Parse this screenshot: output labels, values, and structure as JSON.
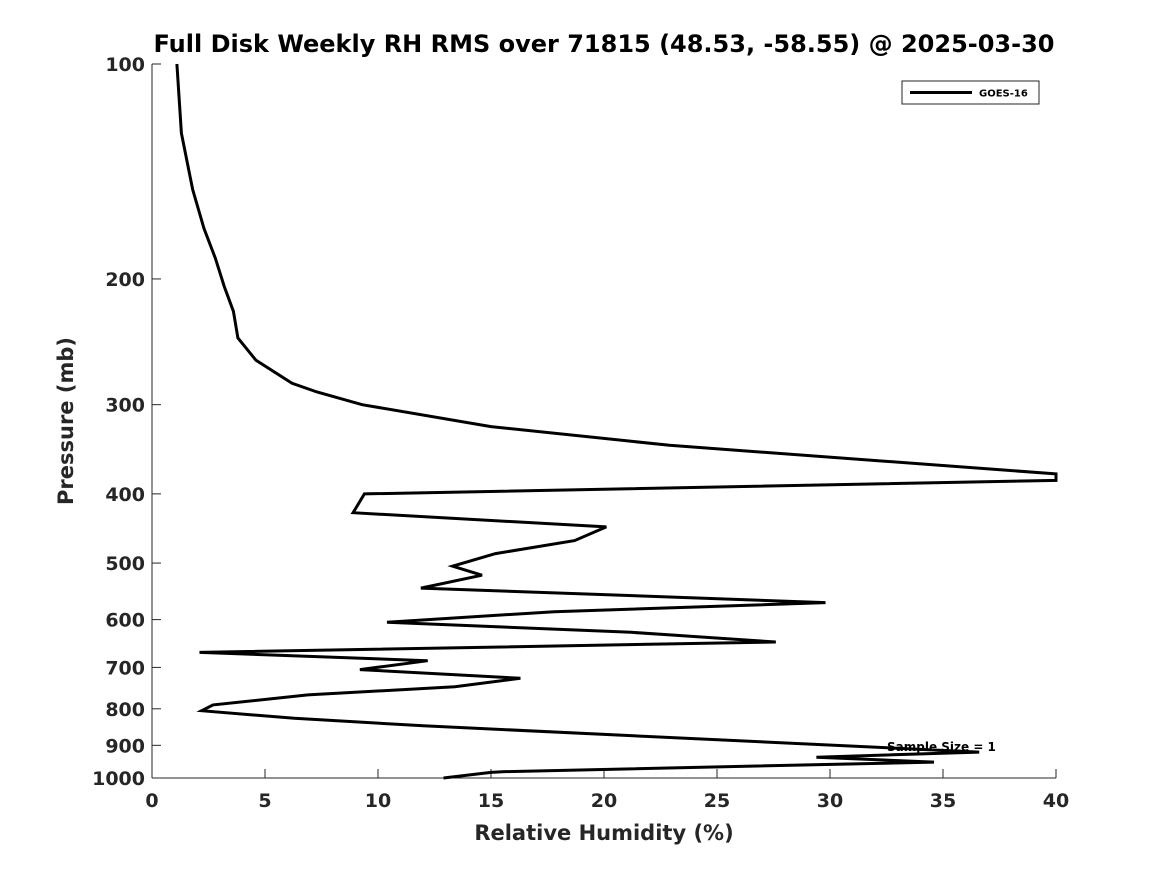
{
  "chart_data": {
    "type": "line",
    "title": "Full Disk Weekly RH RMS over 71815 (48.53, -58.55) @ 2025-03-30",
    "xlabel": "Relative Humidity (%)",
    "ylabel": "Pressure (mb)",
    "xlim": [
      0,
      40
    ],
    "ylim": [
      1000,
      100
    ],
    "y_scale": "log",
    "x_ticks": [
      0,
      5,
      10,
      15,
      20,
      25,
      30,
      35,
      40
    ],
    "y_ticks": [
      100,
      200,
      300,
      400,
      500,
      600,
      700,
      800,
      900,
      1000
    ],
    "grid": false,
    "legend": {
      "position": "top-right",
      "entries": [
        "GOES-16"
      ]
    },
    "annotation": "Sample Size = 1",
    "colors": {
      "line": "#000000",
      "axis": "#262626",
      "background": "#ffffff"
    },
    "series": [
      {
        "name": "GOES-16",
        "points": [
          [
            1.1,
            100
          ],
          [
            1.3,
            125
          ],
          [
            1.8,
            150
          ],
          [
            2.3,
            170
          ],
          [
            2.8,
            187
          ],
          [
            3.2,
            205
          ],
          [
            3.6,
            222
          ],
          [
            3.8,
            242
          ],
          [
            4.6,
            260
          ],
          [
            6.2,
            280
          ],
          [
            7.3,
            288
          ],
          [
            9.3,
            300
          ],
          [
            15.0,
            322
          ],
          [
            22.9,
            342
          ],
          [
            40.0,
            375
          ],
          [
            40.0,
            383
          ],
          [
            9.4,
            400
          ],
          [
            8.9,
            425
          ],
          [
            20.1,
            445
          ],
          [
            18.7,
            465
          ],
          [
            15.2,
            485
          ],
          [
            13.3,
            505
          ],
          [
            14.6,
            520
          ],
          [
            11.9,
            542
          ],
          [
            29.8,
            568
          ],
          [
            17.8,
            585
          ],
          [
            10.4,
            605
          ],
          [
            21.2,
            625
          ],
          [
            27.6,
            645
          ],
          [
            2.1,
            667
          ],
          [
            12.2,
            685
          ],
          [
            9.2,
            705
          ],
          [
            16.3,
            725
          ],
          [
            13.4,
            745
          ],
          [
            6.9,
            765
          ],
          [
            2.7,
            790
          ],
          [
            2.2,
            805
          ],
          [
            6.3,
            825
          ],
          [
            12.0,
            845
          ],
          [
            36.6,
            920
          ],
          [
            29.4,
            935
          ],
          [
            34.6,
            950
          ],
          [
            15.5,
            980
          ],
          [
            15.0,
            982
          ],
          [
            12.9,
            1000
          ]
        ]
      }
    ]
  }
}
